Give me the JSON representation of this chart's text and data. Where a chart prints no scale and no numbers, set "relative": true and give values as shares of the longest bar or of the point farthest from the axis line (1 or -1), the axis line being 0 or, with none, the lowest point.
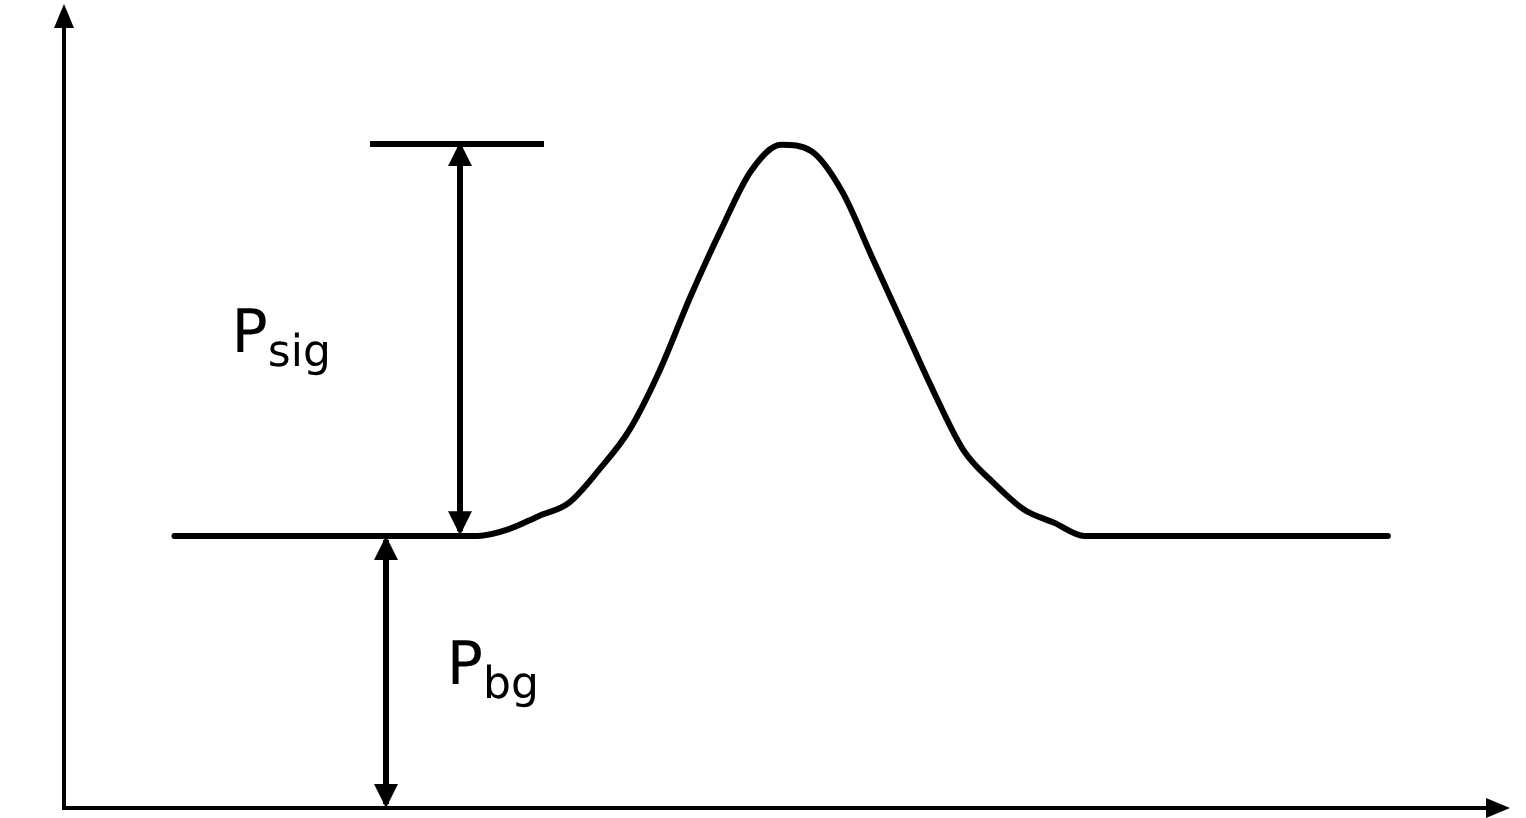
{
  "chart_data": {
    "type": "line",
    "relative": true,
    "color": "#000000",
    "marker": "none",
    "line_style": "solid",
    "grid": false,
    "legend": false,
    "categories": [
      null,
      null,
      null,
      null,
      null,
      null,
      null,
      null,
      null,
      null,
      null,
      null,
      null,
      null,
      null,
      null,
      null,
      null,
      null,
      null,
      null,
      null,
      null,
      null,
      null,
      null,
      null,
      null,
      null,
      null,
      null,
      null,
      null,
      null,
      null,
      null,
      null,
      null,
      null,
      null,
      null
    ],
    "values": [
      0.41,
      0.41,
      0.41,
      0.41,
      0.41,
      0.41,
      0.41,
      0.41,
      0.41,
      0.41,
      0.41,
      0.42,
      0.44,
      0.46,
      0.51,
      0.57,
      0.66,
      0.77,
      0.87,
      0.96,
      1,
      0.99,
      0.93,
      0.83,
      0.73,
      0.63,
      0.54,
      0.49,
      0.45,
      0.43,
      0.41,
      0.41,
      0.41,
      0.41,
      0.41,
      0.41,
      0.41,
      0.41,
      0.41,
      0.41,
      0.41
    ],
    "annotations": [
      "P$_{sig}$",
      "P$_{bg}$"
    ]
  }
}
